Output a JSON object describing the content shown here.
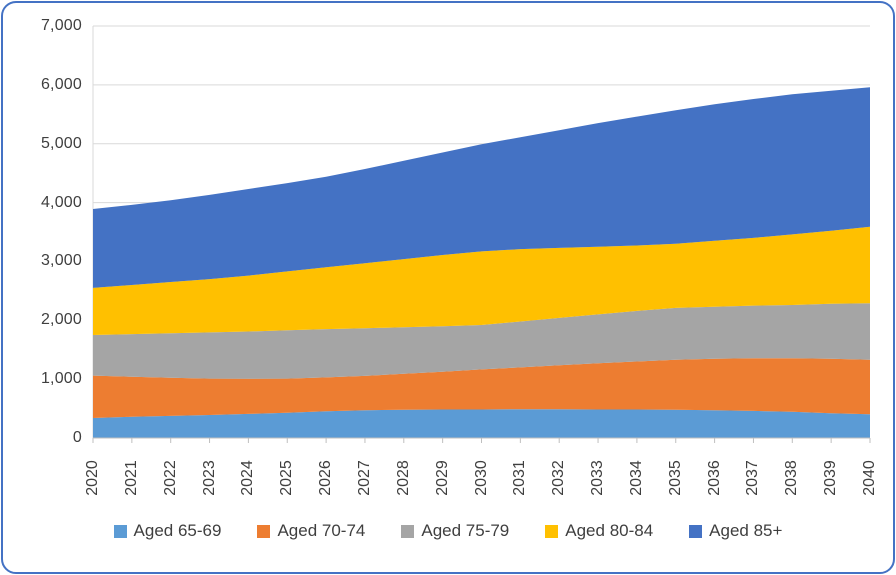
{
  "frame": {
    "border_color": "#4472C4",
    "background_color": "#FFFFFF"
  },
  "axis_style": {
    "text_color": "#3F3F3F",
    "gridline_color": "#D9D9D9",
    "axisline_color": "#BFBFBF",
    "tick_color": "#BFBFBF"
  },
  "chart_data": {
    "type": "area",
    "stacked": true,
    "title": "",
    "xlabel": "",
    "ylabel": "",
    "grid": "horizontal",
    "legend_position": "bottom",
    "ylim": [
      0,
      7000
    ],
    "y_step": 1000,
    "y_tick_labels": [
      "7,000",
      "6,000",
      "5,000",
      "4,000",
      "3,000",
      "2,000",
      "1,000",
      "0"
    ],
    "x_labels": [
      "2020",
      "2021",
      "2022",
      "2023",
      "2024",
      "2025",
      "2026",
      "2027",
      "2028",
      "2029",
      "2030",
      "2031",
      "2032",
      "2033",
      "2034",
      "2035",
      "2036",
      "2037",
      "2038",
      "2039",
      "2040"
    ],
    "series": [
      {
        "name": "Aged 65-69",
        "color": "#5B9BD5",
        "values": [
          340,
          360,
          375,
          390,
          410,
          430,
          455,
          470,
          480,
          485,
          485,
          490,
          490,
          485,
          485,
          480,
          470,
          460,
          445,
          420,
          405
        ]
      },
      {
        "name": "Aged 70-74",
        "color": "#ED7D31",
        "values": [
          720,
          680,
          650,
          620,
          595,
          580,
          575,
          585,
          610,
          640,
          680,
          710,
          745,
          785,
          815,
          850,
          875,
          895,
          910,
          925,
          925
        ]
      },
      {
        "name": "Aged 75-79",
        "color": "#A5A5A5",
        "values": [
          690,
          725,
          755,
          785,
          805,
          820,
          820,
          810,
          790,
          775,
          755,
          780,
          805,
          830,
          860,
          880,
          885,
          895,
          905,
          935,
          960
        ]
      },
      {
        "name": "Aged 80-84",
        "color": "#FFC000",
        "values": [
          800,
          835,
          870,
          905,
          950,
          1000,
          1050,
          1105,
          1160,
          1210,
          1250,
          1230,
          1190,
          1150,
          1110,
          1090,
          1120,
          1150,
          1200,
          1240,
          1300
        ]
      },
      {
        "name": "Aged 85+",
        "color": "#4472C4",
        "values": [
          1340,
          1360,
          1390,
          1430,
          1470,
          1500,
          1540,
          1600,
          1670,
          1740,
          1820,
          1900,
          2000,
          2100,
          2190,
          2270,
          2320,
          2360,
          2380,
          2380,
          2370
        ]
      }
    ]
  }
}
